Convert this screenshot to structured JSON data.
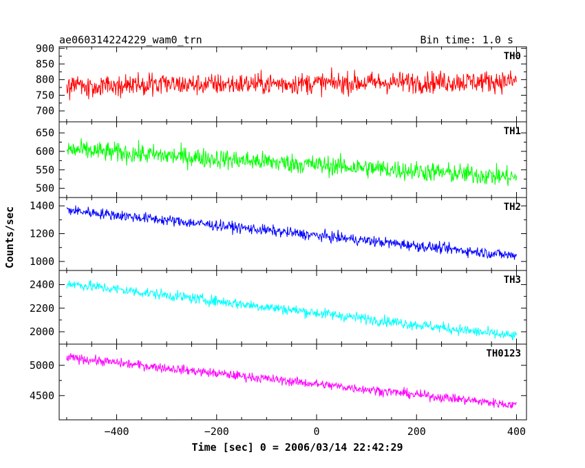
{
  "header": {
    "title": "ae060314224229_wam0_trn",
    "bin_time": "Bin time: 1.0 s"
  },
  "axes": {
    "xlabel": "Time [sec] 0 = 2006/03/14 22:42:29",
    "ylabel": "Counts/sec"
  },
  "chart_data": {
    "type": "line",
    "title": "ae060314224229_wam0_trn",
    "subtitle": "Bin time: 1.0 s",
    "xlabel": "Time [sec] 0 = 2006/03/14 22:42:29",
    "ylabel": "Counts/sec",
    "xlim": [
      -515,
      420
    ],
    "x_ticks": [
      -400,
      -200,
      0,
      200,
      400
    ],
    "x_tick_labels": [
      "−400",
      "−200",
      "0",
      "200",
      "400"
    ],
    "x_data_range": [
      -500,
      400
    ],
    "sample_step_sec": 1.0,
    "series": [
      {
        "name": "TH0",
        "color": "#ff0000",
        "ylim": [
          665,
          905
        ],
        "yticks": [
          700,
          750,
          800,
          850,
          900
        ],
        "trend_start": 780,
        "trend_end": 795,
        "noise_amplitude": 45
      },
      {
        "name": "TH1",
        "color": "#00ff00",
        "ylim": [
          475,
          680
        ],
        "yticks": [
          500,
          550,
          600,
          650
        ],
        "trend_start": 605,
        "trend_end": 530,
        "noise_amplitude": 35
      },
      {
        "name": "TH2",
        "color": "#0000ff",
        "ylim": [
          935,
          1460
        ],
        "yticks": [
          1000,
          1200,
          1400
        ],
        "trend_start": 1370,
        "trend_end": 1040,
        "noise_amplitude": 50
      },
      {
        "name": "TH3",
        "color": "#00ffff",
        "ylim": [
          1895,
          2520
        ],
        "yticks": [
          2000,
          2200,
          2400
        ],
        "trend_start": 2410,
        "trend_end": 1960,
        "noise_amplitude": 60
      },
      {
        "name": "TH0123",
        "color": "#ff00ff",
        "ylim": [
          4100,
          5350
        ],
        "yticks": [
          4500,
          5000
        ],
        "trend_start": 5130,
        "trend_end": 4340,
        "noise_amplitude": 100
      }
    ]
  }
}
